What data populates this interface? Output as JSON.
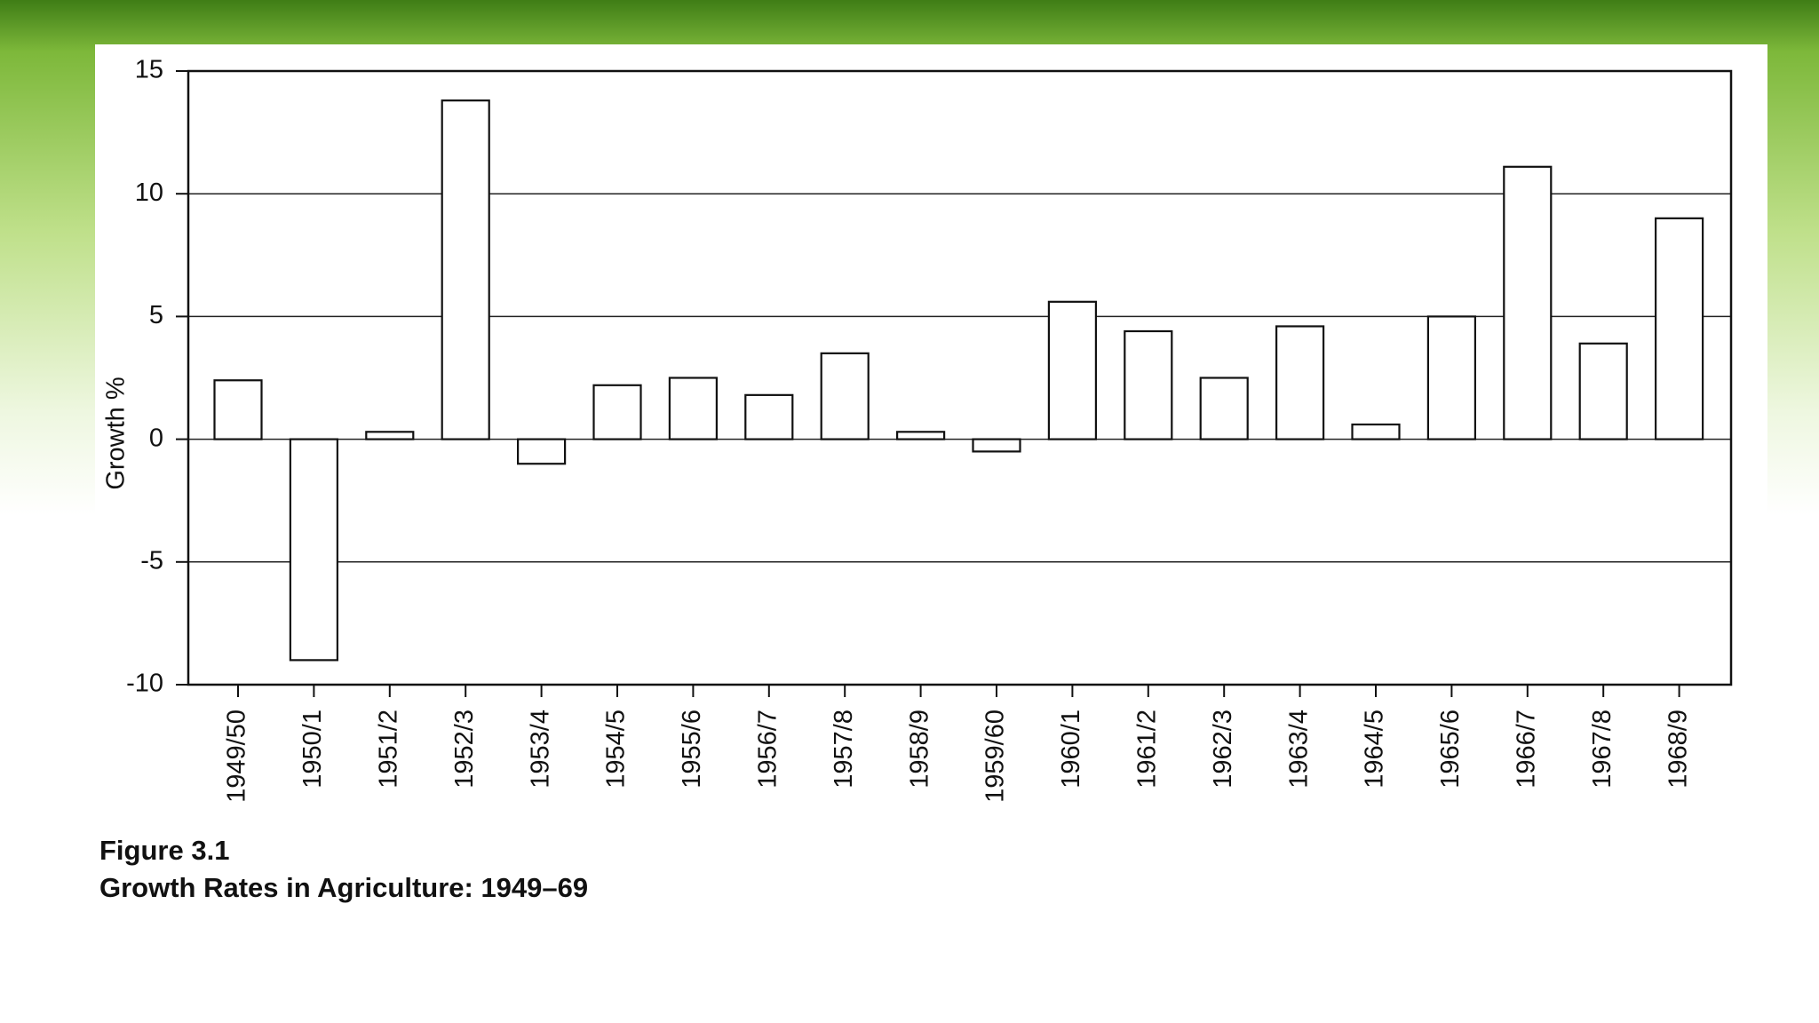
{
  "chart_data": {
    "type": "bar",
    "figure_label": "Figure 3.1",
    "title": "Growth Rates in Agriculture: 1949–69",
    "ylabel": "Growth %",
    "categories": [
      "1949/50",
      "1950/1",
      "1951/2",
      "1952/3",
      "1953/4",
      "1954/5",
      "1955/6",
      "1956/7",
      "1957/8",
      "1958/9",
      "1959/60",
      "1960/1",
      "1961/2",
      "1962/3",
      "1963/4",
      "1964/5",
      "1965/6",
      "1966/7",
      "1967/8",
      "1968/9"
    ],
    "values": [
      2.4,
      -9.0,
      0.3,
      13.8,
      -1.0,
      2.2,
      2.5,
      1.8,
      3.5,
      0.3,
      -0.5,
      5.6,
      4.4,
      2.5,
      4.6,
      0.6,
      5.0,
      11.1,
      3.9,
      9.0
    ],
    "color": "#ffffff",
    "ylim": [
      -10,
      15
    ],
    "yticks": [
      15,
      10,
      5,
      0,
      -5,
      -10
    ],
    "grid": true
  }
}
